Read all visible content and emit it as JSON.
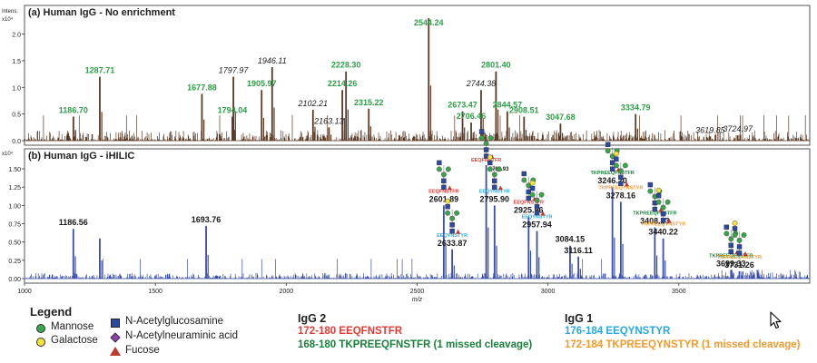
{
  "colors": {
    "spectrum_a": "#5b3a26",
    "spectrum_b": "#3b4fa8",
    "label_green": "#2e9e48",
    "label_black": "#222222",
    "igg2_red": "#e53935",
    "igg2_green": "#1a7f3c",
    "igg1_blue": "#29a8e0",
    "igg1_orange": "#f39a2b"
  },
  "chart_data": [
    {
      "type": "line",
      "title": "(a) Human IgG - No enrichment",
      "ylabel": "Intens.",
      "y_exponent": "x10⁴",
      "xlim": [
        1000,
        4000
      ],
      "ylim": [
        0,
        2.3
      ],
      "yticks": [
        "0.0",
        "0.5",
        "1.0",
        "1.5",
        "2.0"
      ],
      "peaks": [
        {
          "x": 1186.7,
          "y": 0.45,
          "label": "1186.70",
          "style": "green"
        },
        {
          "x": 1287.71,
          "y": 1.2,
          "label": "1287.71",
          "style": "green"
        },
        {
          "x": 1677.88,
          "y": 0.88,
          "label": "1677.88",
          "style": "green"
        },
        {
          "x": 1794.04,
          "y": 0.45,
          "label": "1794.04",
          "style": "green"
        },
        {
          "x": 1797.97,
          "y": 1.2,
          "label": "1797.97",
          "style": "black"
        },
        {
          "x": 1905.97,
          "y": 0.95,
          "label": "1905.97",
          "style": "green"
        },
        {
          "x": 1946.11,
          "y": 1.38,
          "label": "1946.11",
          "style": "black"
        },
        {
          "x": 2102.21,
          "y": 0.58,
          "label": "2102.21",
          "style": "black"
        },
        {
          "x": 2163.13,
          "y": 0.25,
          "label": "2163.13",
          "style": "black"
        },
        {
          "x": 2214.26,
          "y": 0.95,
          "label": "2214.26",
          "style": "green"
        },
        {
          "x": 2228.3,
          "y": 1.3,
          "label": "2228.30",
          "style": "green"
        },
        {
          "x": 2315.22,
          "y": 0.6,
          "label": "2315.22",
          "style": "green"
        },
        {
          "x": 2544.24,
          "y": 2.3,
          "label": "2544.24",
          "style": "green"
        },
        {
          "x": 2673.47,
          "y": 0.55,
          "label": "2673.47",
          "style": "green"
        },
        {
          "x": 2706.46,
          "y": 0.34,
          "label": "2706.46",
          "style": "green"
        },
        {
          "x": 2744.38,
          "y": 0.95,
          "label": "2744.38",
          "style": "black"
        },
        {
          "x": 2801.4,
          "y": 1.3,
          "label": "2801.40",
          "style": "green"
        },
        {
          "x": 2844.57,
          "y": 0.55,
          "label": "2844.57",
          "style": "green"
        },
        {
          "x": 2908.51,
          "y": 0.45,
          "label": "2908.51",
          "style": "green"
        },
        {
          "x": 3047.68,
          "y": 0.32,
          "label": "3047.68",
          "style": "green"
        },
        {
          "x": 3334.79,
          "y": 0.5,
          "label": "3334.79",
          "style": "green"
        },
        {
          "x": 3619.85,
          "y": 0.08,
          "label": "3619.85",
          "style": "black"
        },
        {
          "x": 3724.97,
          "y": 0.1,
          "label": "3724.97",
          "style": "black"
        }
      ]
    },
    {
      "type": "line",
      "title": "(b) Human IgG - iHILIC",
      "y_exponent": "x10⁴",
      "xlim": [
        1000,
        4000
      ],
      "ylim": [
        0,
        1.6
      ],
      "yticks": [
        "0.00",
        "0.25",
        "0.50",
        "0.75",
        "1.00",
        "1.25",
        "1.50"
      ],
      "xticks": [
        "1000",
        "1500",
        "2000",
        "2500",
        "3000",
        "3500"
      ],
      "xlabel": "m/z",
      "peaks": [
        {
          "x": 1186.56,
          "y": 0.68,
          "label": "1186.56"
        },
        {
          "x": 1287.6,
          "y": 0.55,
          "label": ""
        },
        {
          "x": 1693.76,
          "y": 0.72,
          "label": "1693.76"
        },
        {
          "x": 2601.89,
          "y": 1.0,
          "label": "2601.89",
          "peptide": "EEQFNSTFR",
          "pep_color": "red"
        },
        {
          "x": 2633.87,
          "y": 0.4,
          "label": "2633.87",
          "peptide": "EEQYNSTYR",
          "pep_color": "blue"
        },
        {
          "x": 2763.93,
          "y": 1.55,
          "label": "2763.93",
          "peptide": "EEQFNSTFR",
          "pep_color": "red"
        },
        {
          "x": 2795.9,
          "y": 1.0,
          "label": "2795.90",
          "peptide": "EEQYNSTYR",
          "pep_color": "blue"
        },
        {
          "x": 2925.96,
          "y": 0.85,
          "label": "2925.96",
          "peptide": "EEQFNSTFR",
          "pep_color": "red"
        },
        {
          "x": 2957.94,
          "y": 0.65,
          "label": "2957.94",
          "peptide": "EEQYNSTYR",
          "pep_color": "blue"
        },
        {
          "x": 3084.15,
          "y": 0.45,
          "label": "3084.15"
        },
        {
          "x": 3116.11,
          "y": 0.3,
          "label": "3116.11"
        },
        {
          "x": 3246.2,
          "y": 1.25,
          "label": "3246.20",
          "peptide": "TKPREEQFNSTFR",
          "pep_color": "green"
        },
        {
          "x": 3278.16,
          "y": 1.05,
          "label": "3278.16",
          "peptide": "TKPREEQYNSTYR",
          "pep_color": "orange"
        },
        {
          "x": 3408.23,
          "y": 0.7,
          "label": "3408.23",
          "peptide": "TKPREEQFNSTFR",
          "pep_color": "green"
        },
        {
          "x": 3440.22,
          "y": 0.55,
          "label": "3440.22",
          "peptide": "TKPREEQYNSTYR",
          "pep_color": "orange"
        },
        {
          "x": 3699.33,
          "y": 0.12,
          "label": "3699.33",
          "peptide": "TKPREEQFNSTFR",
          "pep_color": "green"
        },
        {
          "x": 3731.26,
          "y": 0.1,
          "label": "3731.26",
          "peptide": "TKPREEQYNSTYR",
          "pep_color": "orange"
        }
      ]
    }
  ],
  "legend": {
    "title": "Legend",
    "items": [
      {
        "name": "Mannose",
        "shape": "circle",
        "color": "#3aa64a"
      },
      {
        "name": "Galactose",
        "shape": "circle",
        "color": "#f2e23a"
      },
      {
        "name": "N-Acetylglucosamine",
        "shape": "square",
        "color": "#2d4aa0"
      },
      {
        "name": "N-Acetylneuraminic acid",
        "shape": "diamond",
        "color": "#8e44ad"
      },
      {
        "name": "Fucose",
        "shape": "triangle",
        "color": "#c0392b"
      }
    ]
  },
  "igg2": {
    "title": "IgG 2",
    "line1": "172-180 EEQFNSTFR",
    "line2": "168-180 TKPREEQFNSTFR (1 missed cleavage)"
  },
  "igg1": {
    "title": "IgG 1",
    "line1": "176-184 EEQYNSTYR",
    "line2": "172-184 TKPREEQYNSTYR (1 missed cleavage)"
  }
}
